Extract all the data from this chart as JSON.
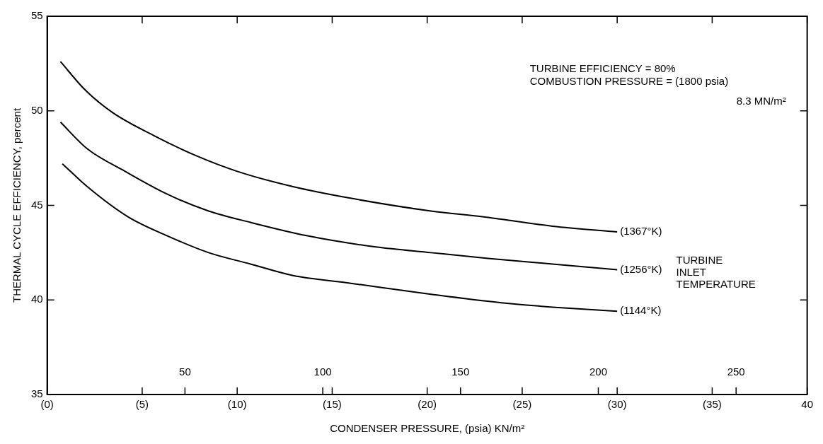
{
  "chart_data": {
    "type": "line",
    "xlabel": "CONDENSER PRESSURE, (psia) KN/m²",
    "ylabel": "THERMAL CYCLE EFFICIENCY, percent",
    "legend": false,
    "legend_title": "TURBINE INLET TEMPERATURE",
    "xlim": [
      0,
      40
    ],
    "xticks": [
      {
        "value": 0,
        "label": "(0)"
      },
      {
        "value": 5,
        "label": "(5)"
      },
      {
        "value": 10,
        "label": "(10)"
      },
      {
        "value": 15,
        "label": "(15)"
      },
      {
        "value": 20,
        "label": "(20)"
      },
      {
        "value": 25,
        "label": "(25)"
      },
      {
        "value": 30,
        "label": "(30)"
      },
      {
        "value": 35,
        "label": "(35)"
      },
      40
    ],
    "x2lim": [
      0,
      275.8
    ],
    "x2ticks": [
      50,
      100,
      150,
      200,
      250
    ],
    "ylim": [
      35,
      55
    ],
    "yticks": [
      35,
      40,
      45,
      50,
      55
    ],
    "annotations": [
      "TURBINE EFFICIENCY = 80%",
      "COMBUSTION PRESSURE = (1800 psia)",
      "8.3 MN/m²"
    ],
    "series": [
      {
        "name": "(1367°K)",
        "color": "#000000",
        "x": [
          0.7,
          2.0,
          3.45,
          5.6,
          7.9,
          10.0,
          12.9,
          15.85,
          20.2,
          22.9,
          26.6,
          30.0
        ],
        "values": [
          52.6,
          51.1,
          49.9,
          48.7,
          47.6,
          46.8,
          46.0,
          45.4,
          44.7,
          44.4,
          43.9,
          43.6
        ]
      },
      {
        "name": "(1256°K)",
        "color": "#000000",
        "x": [
          0.7,
          2.1,
          4.1,
          6.3,
          8.5,
          10.7,
          13.65,
          17.3,
          20.2,
          23.2,
          26.6,
          30.0
        ],
        "values": [
          49.4,
          48.0,
          46.8,
          45.6,
          44.7,
          44.1,
          43.4,
          42.8,
          42.5,
          42.2,
          41.9,
          41.6
        ]
      },
      {
        "name": "(1144°K)",
        "color": "#000000",
        "x": [
          0.8,
          2.1,
          4.25,
          6.3,
          8.5,
          10.7,
          12.9,
          15.85,
          20.2,
          23.9,
          26.9,
          30.0
        ],
        "values": [
          47.2,
          46.0,
          44.4,
          43.4,
          42.5,
          41.9,
          41.3,
          40.9,
          40.3,
          39.85,
          39.6,
          39.4
        ]
      }
    ]
  }
}
